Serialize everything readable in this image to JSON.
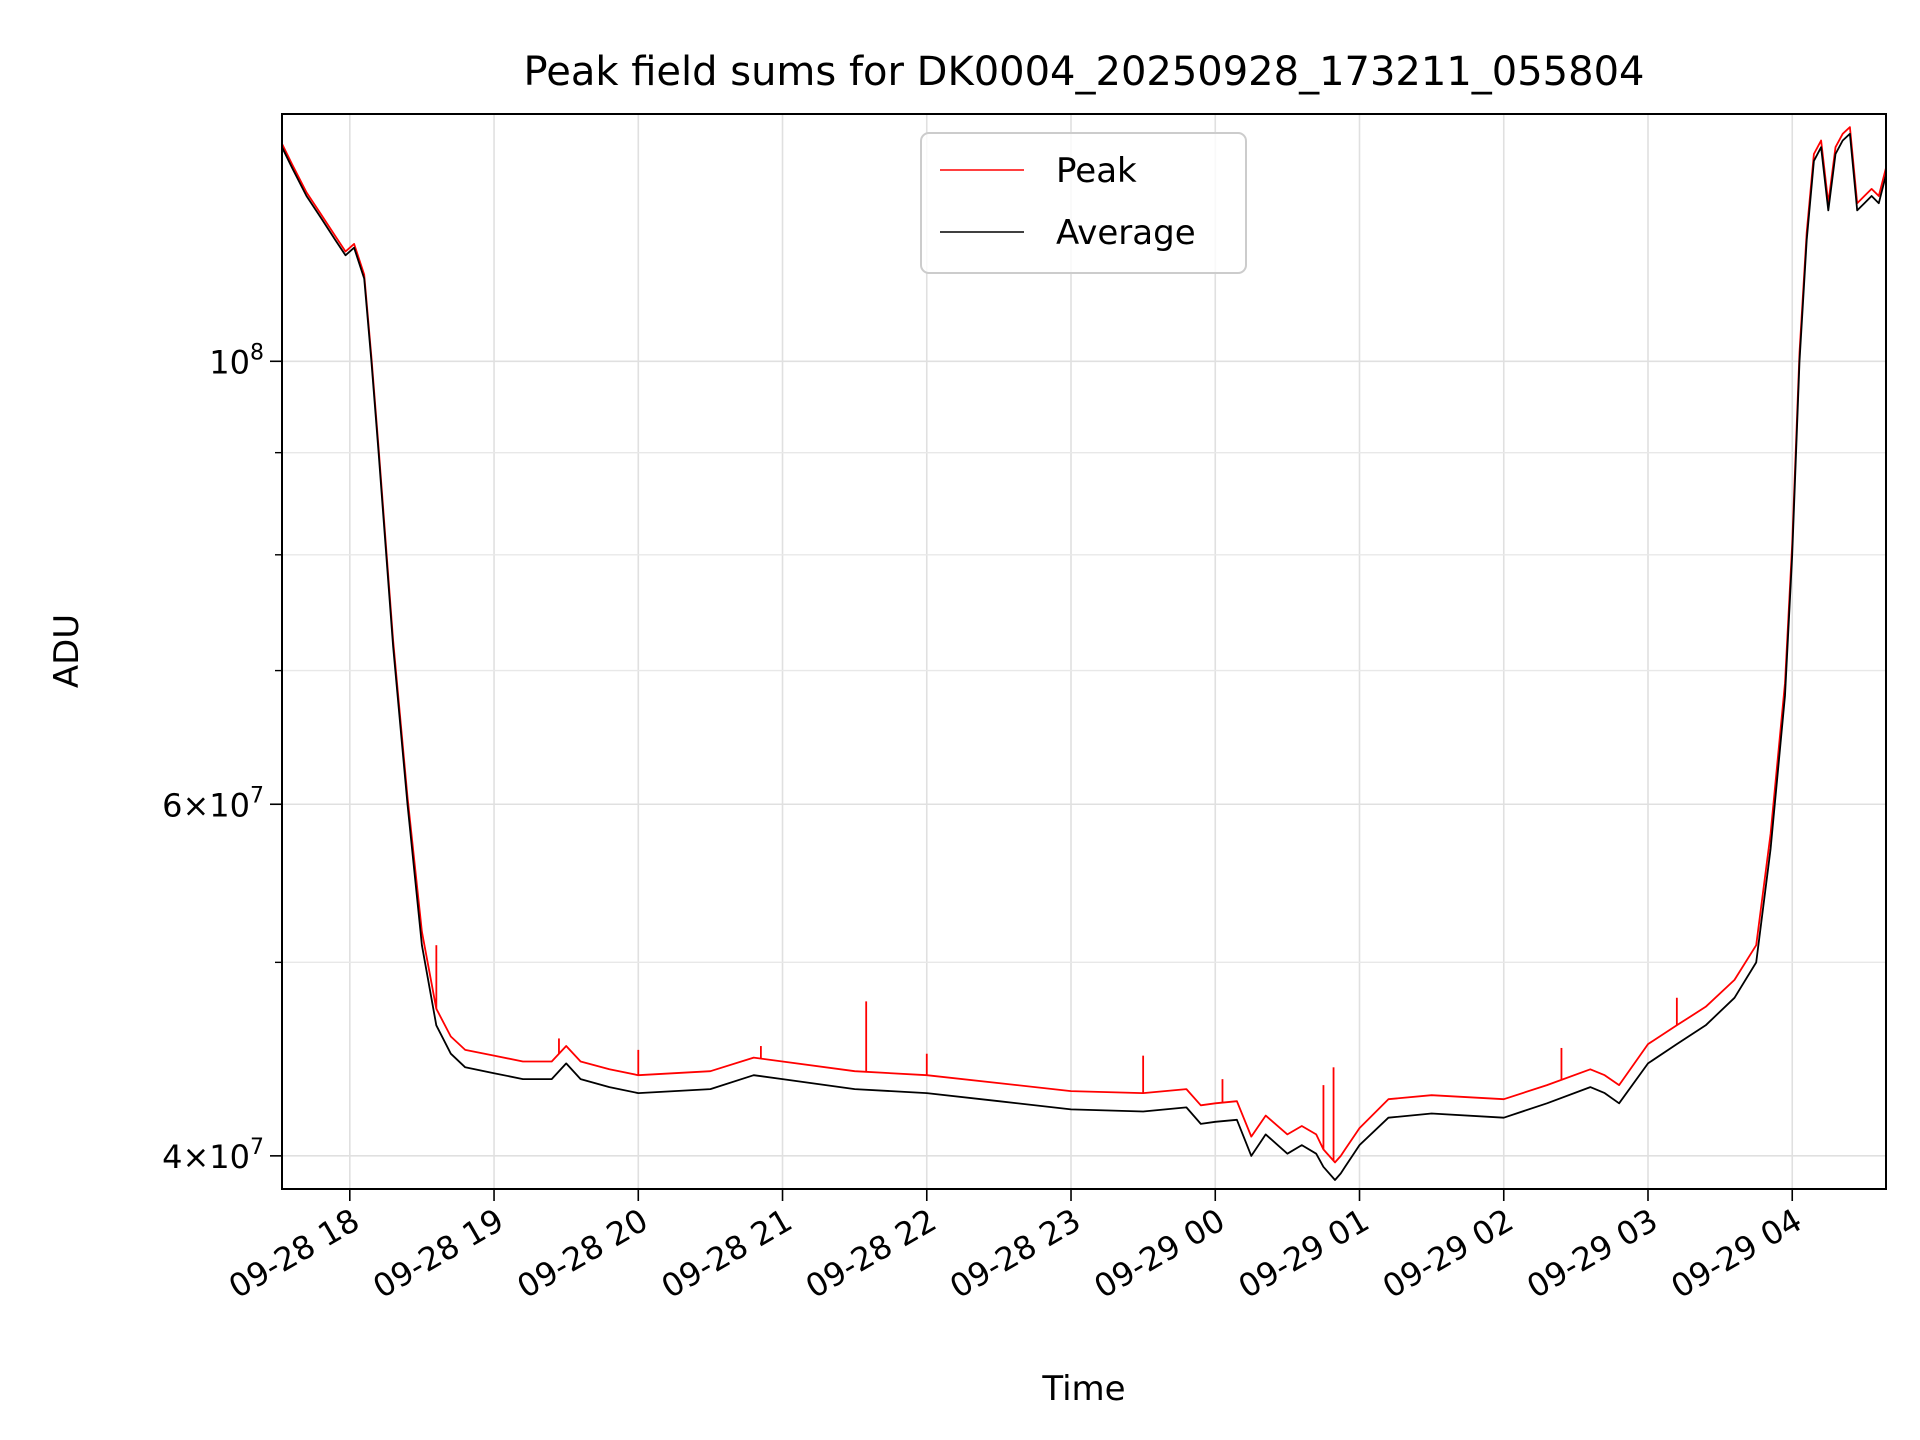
{
  "chart_data": {
    "type": "line",
    "title": "Peak field sums for DK0004_20250928_173211_055804",
    "xlabel": "Time",
    "ylabel": "ADU",
    "yscale": "log",
    "ylim": [
      38500000,
      133000000
    ],
    "xlim_hours": [
      17.53,
      28.65
    ],
    "x_ticks": [
      {
        "hour": 18,
        "label": "09-28 18"
      },
      {
        "hour": 19,
        "label": "09-28 19"
      },
      {
        "hour": 20,
        "label": "09-28 20"
      },
      {
        "hour": 21,
        "label": "09-28 21"
      },
      {
        "hour": 22,
        "label": "09-28 22"
      },
      {
        "hour": 23,
        "label": "09-28 23"
      },
      {
        "hour": 24,
        "label": "09-29 00"
      },
      {
        "hour": 25,
        "label": "09-29 01"
      },
      {
        "hour": 26,
        "label": "09-29 02"
      },
      {
        "hour": 27,
        "label": "09-29 03"
      },
      {
        "hour": 28,
        "label": "09-29 04"
      }
    ],
    "y_major_ticks": [
      {
        "value": 40000000,
        "mantissa": "4",
        "exp": "7"
      },
      {
        "value": 60000000,
        "mantissa": "6",
        "exp": "7"
      },
      {
        "value": 100000000,
        "mantissa": "",
        "exp": "8"
      }
    ],
    "y_minor_ticks": [
      50000000,
      70000000,
      80000000,
      90000000
    ],
    "grid": true,
    "legend": {
      "position": "top-center",
      "entries": [
        {
          "label": "Peak",
          "color": "#ff0000"
        },
        {
          "label": "Average",
          "color": "#000000"
        }
      ]
    },
    "series": [
      {
        "name": "Average",
        "color": "#000000",
        "x_hours": [
          17.53,
          17.6,
          17.7,
          17.8,
          17.9,
          17.97,
          18.03,
          18.1,
          18.15,
          18.2,
          18.3,
          18.4,
          18.5,
          18.6,
          18.7,
          18.8,
          19.0,
          19.2,
          19.4,
          19.5,
          19.6,
          19.8,
          20.0,
          20.5,
          20.8,
          21.0,
          21.5,
          22.0,
          22.5,
          23.0,
          23.5,
          23.8,
          23.9,
          24.0,
          24.15,
          24.25,
          24.35,
          24.5,
          24.6,
          24.7,
          24.75,
          24.83,
          24.87,
          24.9,
          25.0,
          25.2,
          25.5,
          26.0,
          26.3,
          26.6,
          26.7,
          26.8,
          27.0,
          27.2,
          27.4,
          27.6,
          27.75,
          27.85,
          27.95,
          28.0,
          28.05,
          28.1,
          28.15,
          28.2,
          28.25,
          28.3,
          28.35,
          28.4,
          28.45,
          28.5,
          28.55,
          28.6,
          28.65
        ],
        "values": [
          128000000,
          125000000,
          121000000,
          118000000,
          115000000,
          113000000,
          114000000,
          110000000,
          100000000,
          90000000,
          72000000,
          60000000,
          51000000,
          46500000,
          45000000,
          44300000,
          44000000,
          43700000,
          43700000,
          44500000,
          43700000,
          43300000,
          43000000,
          43200000,
          43900000,
          43700000,
          43200000,
          43000000,
          42600000,
          42200000,
          42100000,
          42300000,
          41500000,
          41600000,
          41700000,
          40000000,
          41000000,
          40100000,
          40500000,
          40100000,
          39500000,
          38900000,
          39200000,
          39500000,
          40500000,
          41800000,
          42000000,
          41800000,
          42500000,
          43300000,
          43000000,
          42500000,
          44500000,
          45500000,
          46500000,
          48000000,
          50000000,
          57000000,
          68000000,
          80000000,
          100000000,
          115000000,
          126000000,
          128000000,
          119000000,
          127000000,
          129000000,
          130000000,
          119000000,
          120000000,
          121000000,
          120000000,
          124000000
        ]
      },
      {
        "name": "Peak",
        "color": "#ff0000",
        "x_hours": [
          17.53,
          17.6,
          17.7,
          17.8,
          17.9,
          17.97,
          18.03,
          18.1,
          18.15,
          18.2,
          18.3,
          18.4,
          18.5,
          18.6,
          18.7,
          18.8,
          19.0,
          19.2,
          19.4,
          19.5,
          19.6,
          19.8,
          20.0,
          20.5,
          20.8,
          21.0,
          21.5,
          22.0,
          22.5,
          23.0,
          23.5,
          23.8,
          23.9,
          24.0,
          24.15,
          24.25,
          24.35,
          24.5,
          24.6,
          24.7,
          24.75,
          24.83,
          24.87,
          24.9,
          25.0,
          25.2,
          25.5,
          26.0,
          26.3,
          26.6,
          26.7,
          26.8,
          27.0,
          27.2,
          27.4,
          27.6,
          27.75,
          27.85,
          27.95,
          28.0,
          28.05,
          28.1,
          28.15,
          28.2,
          28.25,
          28.3,
          28.35,
          28.4,
          28.45,
          28.5,
          28.55,
          28.6,
          28.65
        ],
        "values": [
          128500000,
          125500000,
          121500000,
          118500000,
          115500000,
          113500000,
          114500000,
          110500000,
          100500000,
          90500000,
          72500000,
          60500000,
          51800000,
          47400000,
          45900000,
          45200000,
          44900000,
          44600000,
          44600000,
          45400000,
          44600000,
          44200000,
          43900000,
          44100000,
          44800000,
          44600000,
          44100000,
          43900000,
          43500000,
          43100000,
          43000000,
          43200000,
          42400000,
          42500000,
          42600000,
          40900000,
          41900000,
          41000000,
          41400000,
          41000000,
          40300000,
          39700000,
          40000000,
          40300000,
          41300000,
          42700000,
          42900000,
          42700000,
          43400000,
          44200000,
          43900000,
          43400000,
          45500000,
          46500000,
          47500000,
          49000000,
          51000000,
          58000000,
          69000000,
          81000000,
          101000000,
          116000000,
          127000000,
          129000000,
          120000000,
          128000000,
          130000000,
          131000000,
          120000000,
          121000000,
          122000000,
          121000000,
          125000000
        ],
        "spikes": [
          {
            "hour": 18.6,
            "value": 51000000
          },
          {
            "hour": 19.45,
            "value": 45800000
          },
          {
            "hour": 20.0,
            "value": 45200000
          },
          {
            "hour": 20.85,
            "value": 45400000
          },
          {
            "hour": 21.58,
            "value": 47800000
          },
          {
            "hour": 22.0,
            "value": 45000000
          },
          {
            "hour": 23.5,
            "value": 44900000
          },
          {
            "hour": 24.05,
            "value": 43700000
          },
          {
            "hour": 24.75,
            "value": 43400000
          },
          {
            "hour": 24.82,
            "value": 44300000
          },
          {
            "hour": 26.4,
            "value": 45300000
          },
          {
            "hour": 27.2,
            "value": 48000000
          }
        ]
      }
    ]
  }
}
